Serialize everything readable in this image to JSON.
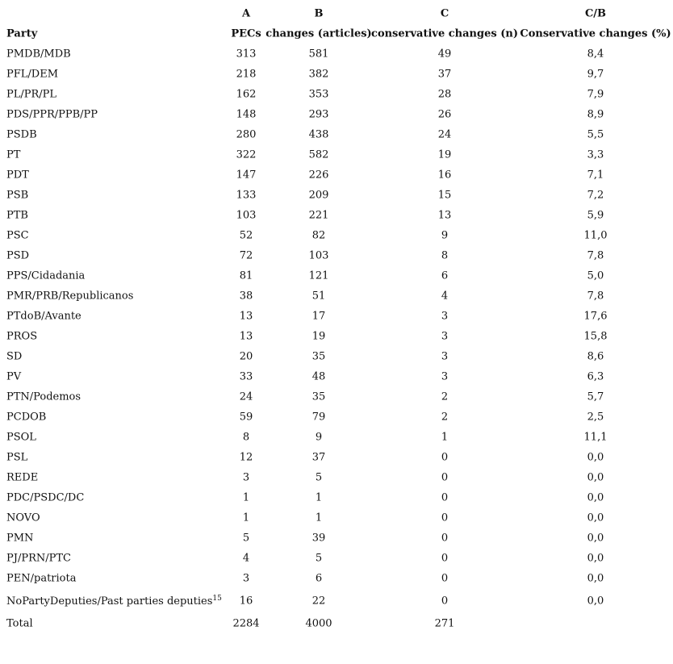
{
  "table": {
    "letters": [
      "A",
      "B",
      "C",
      "C/B"
    ],
    "columns": [
      "Party",
      "PECs",
      "changes (articles)",
      "conservative changes (n)",
      "Conservative changes (%)"
    ],
    "rows": [
      [
        "PMDB/MDB",
        "313",
        "581",
        "49",
        "8,4"
      ],
      [
        "PFL/DEM",
        "218",
        "382",
        "37",
        "9,7"
      ],
      [
        "PL/PR/PL",
        "162",
        "353",
        "28",
        "7,9"
      ],
      [
        "PDS/PPR/PPB/PP",
        "148",
        "293",
        "26",
        "8,9"
      ],
      [
        "PSDB",
        "280",
        "438",
        "24",
        "5,5"
      ],
      [
        "PT",
        "322",
        "582",
        "19",
        "3,3"
      ],
      [
        "PDT",
        "147",
        "226",
        "16",
        "7,1"
      ],
      [
        "PSB",
        "133",
        "209",
        "15",
        "7,2"
      ],
      [
        "PTB",
        "103",
        "221",
        "13",
        "5,9"
      ],
      [
        "PSC",
        "52",
        "82",
        "9",
        "11,0"
      ],
      [
        "PSD",
        "72",
        "103",
        "8",
        "7,8"
      ],
      [
        "PPS/Cidadania",
        "81",
        "121",
        "6",
        "5,0"
      ],
      [
        "PMR/PRB/Republicanos",
        "38",
        "51",
        "4",
        "7,8"
      ],
      [
        "PTdoB/Avante",
        "13",
        "17",
        "3",
        "17,6"
      ],
      [
        "PROS",
        "13",
        "19",
        "3",
        "15,8"
      ],
      [
        "SD",
        "20",
        "35",
        "3",
        "8,6"
      ],
      [
        "PV",
        "33",
        "48",
        "3",
        "6,3"
      ],
      [
        "PTN/Podemos",
        "24",
        "35",
        "2",
        "5,7"
      ],
      [
        "PCDOB",
        "59",
        "79",
        "2",
        "2,5"
      ],
      [
        "PSOL",
        "8",
        "9",
        "1",
        "11,1"
      ],
      [
        "PSL",
        "12",
        "37",
        "0",
        "0,0"
      ],
      [
        "REDE",
        "3",
        "5",
        "0",
        "0,0"
      ],
      [
        "PDC/PSDC/DC",
        "1",
        "1",
        "0",
        "0,0"
      ],
      [
        "NOVO",
        "1",
        "1",
        "0",
        "0,0"
      ],
      [
        "PMN",
        "5",
        "39",
        "0",
        "0,0"
      ],
      [
        "PJ/PRN/PTC",
        "4",
        "5",
        "0",
        "0,0"
      ],
      [
        "PEN/patriota",
        "3",
        "6",
        "0",
        "0,0"
      ]
    ],
    "footnote_row": {
      "cells": [
        "NoPartyDeputies/Past parties deputies",
        "16",
        "22",
        "0",
        "0,0"
      ],
      "mark": "15"
    },
    "total": [
      "Total",
      "2284",
      "4000",
      "271"
    ]
  }
}
